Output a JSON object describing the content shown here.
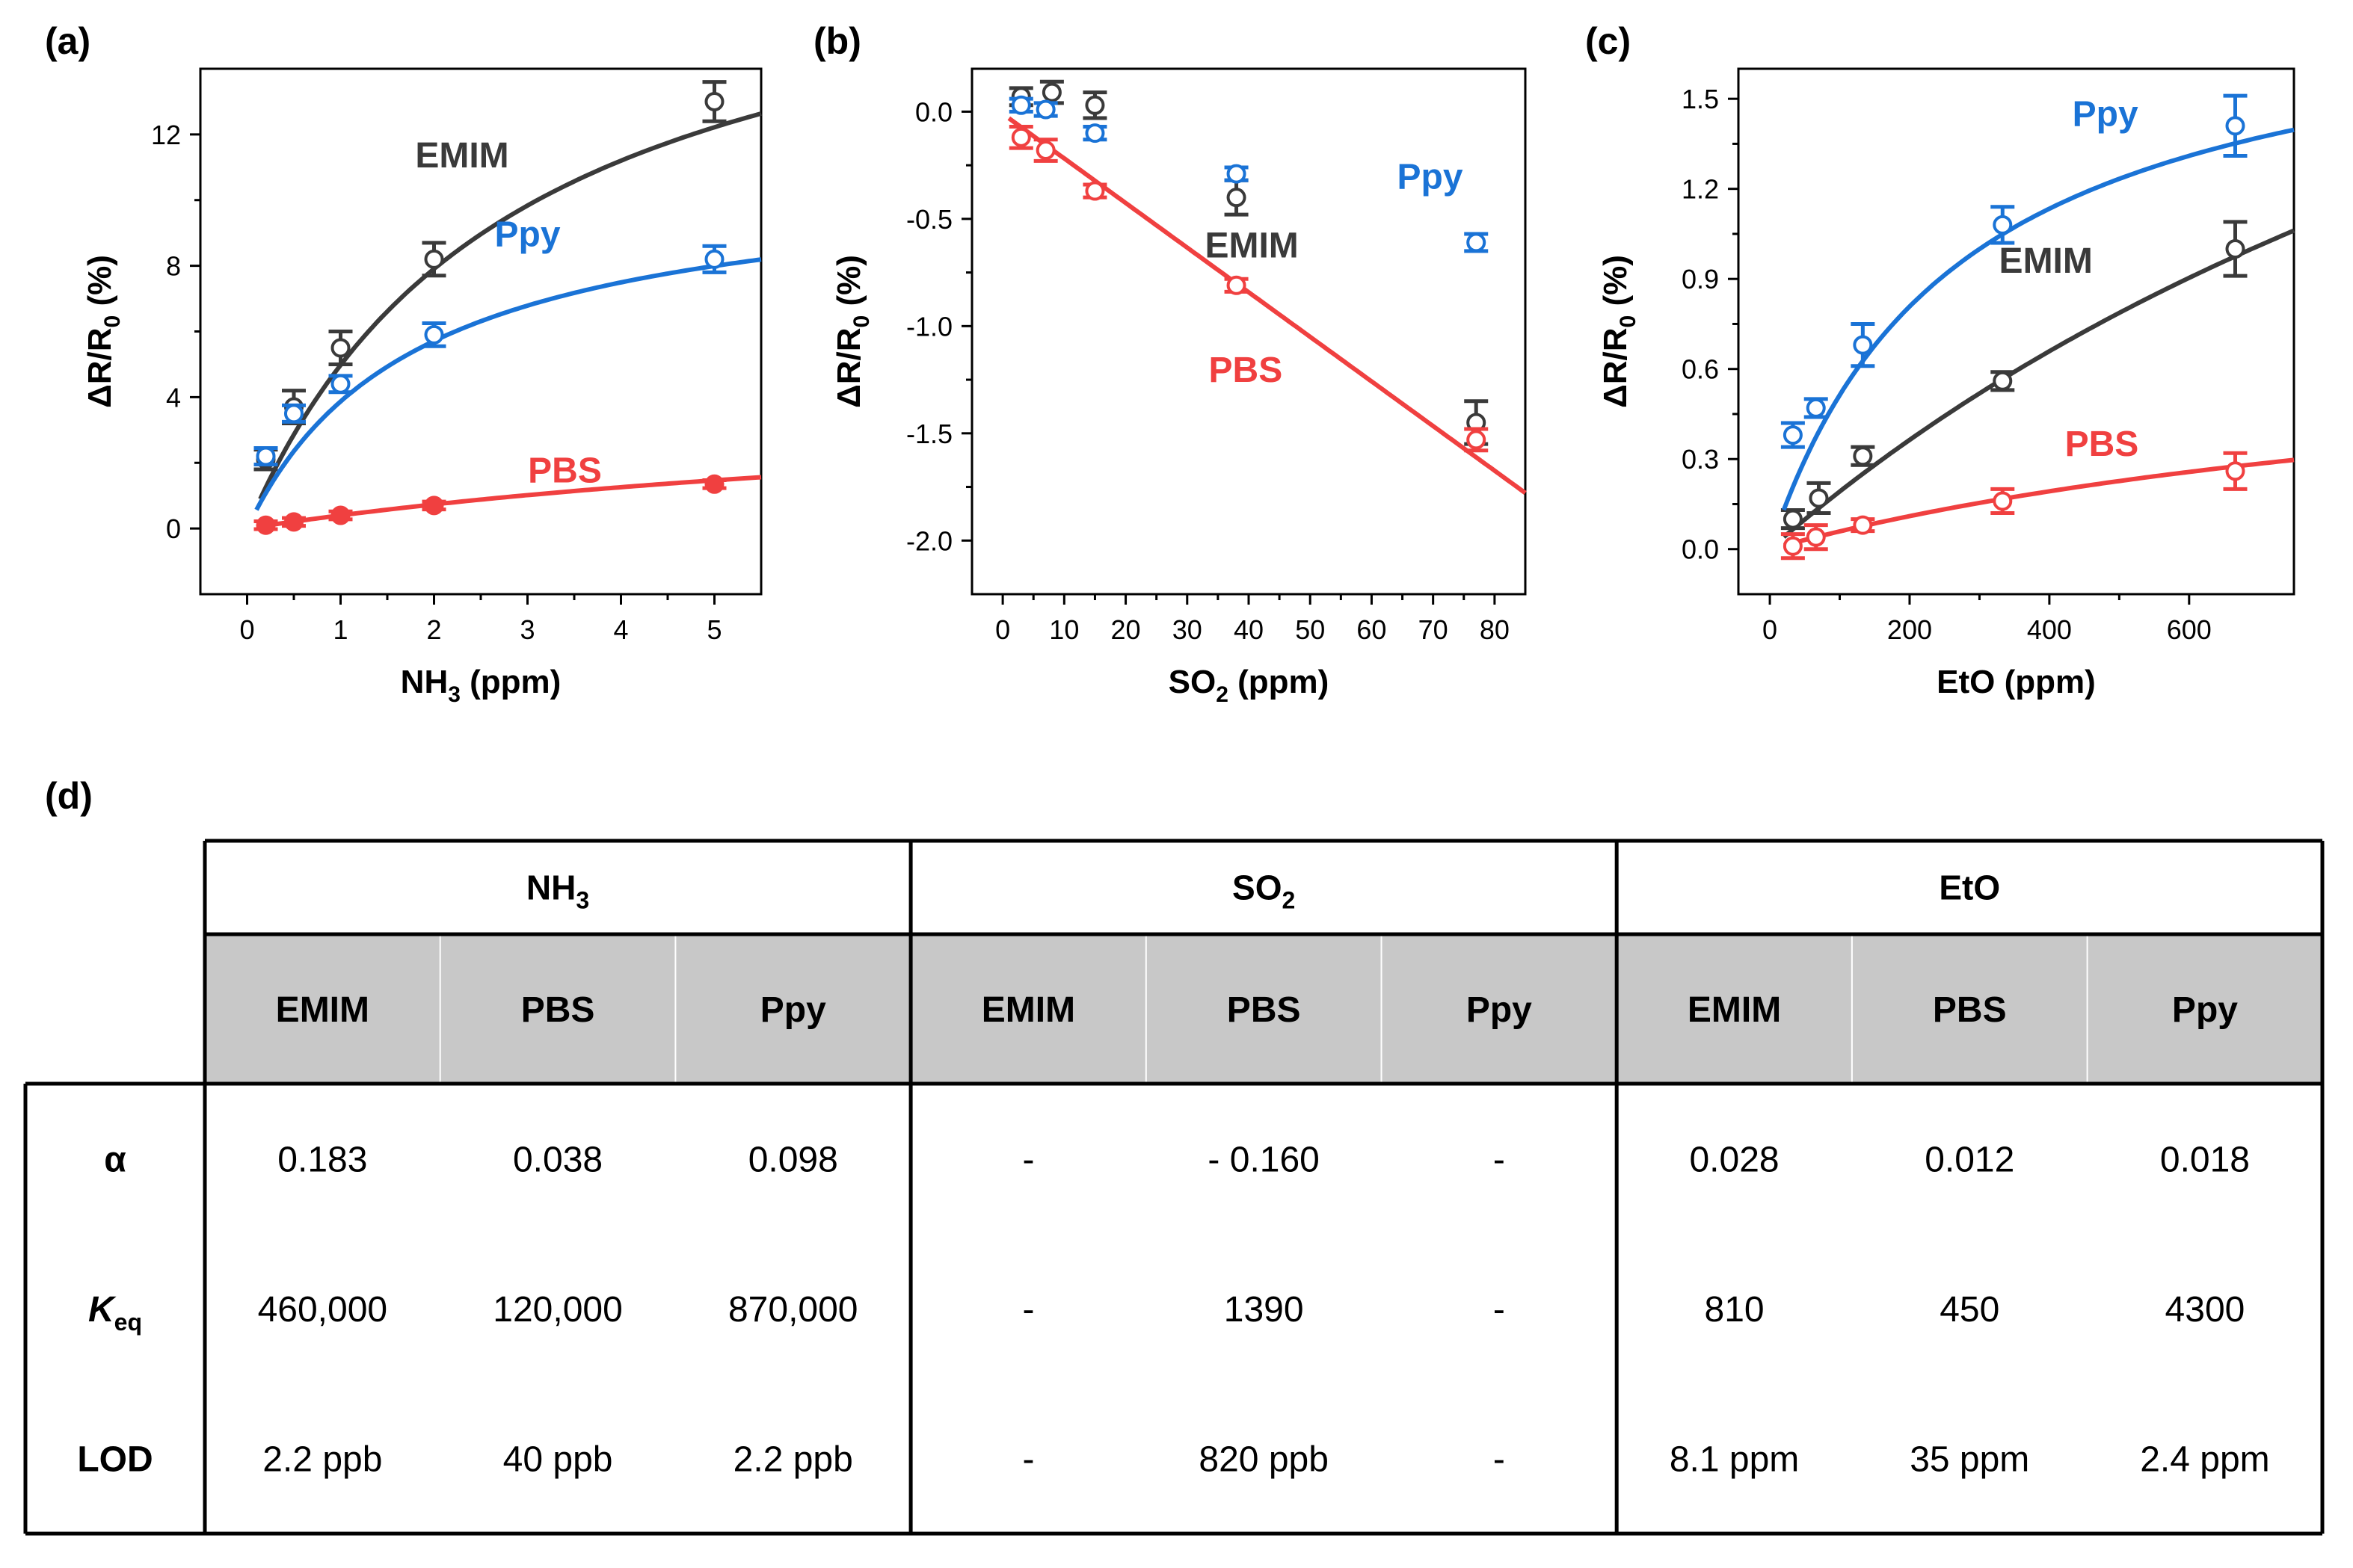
{
  "panel_labels": {
    "a": "(a)",
    "b": "(b)",
    "c": "(c)",
    "d": "(d)"
  },
  "colors": {
    "EMIM": "#3a3a3a",
    "Ppy": "#1a73d6",
    "PBS": "#f04040",
    "grid": "#000000",
    "header_bg": "#c8c8c8"
  },
  "chart_data": [
    {
      "id": "a",
      "type": "scatter",
      "xlabel_main": "NH",
      "xlabel_sub": "3",
      "xlabel_tail": " (ppm)",
      "ylabel": "ΔR/R0 (%)",
      "xlim": [
        -0.5,
        5.5
      ],
      "ylim": [
        -2,
        14
      ],
      "xticks": [
        0,
        1,
        2,
        3,
        4,
        5
      ],
      "yticks": [
        0,
        4,
        8,
        12
      ],
      "series": [
        {
          "name": "EMIM",
          "label": "EMIM",
          "label_at": [
            2.3,
            11
          ],
          "marker": "open",
          "points": [
            [
              0.2,
              2.1,
              0.3
            ],
            [
              0.5,
              3.7,
              0.5
            ],
            [
              1,
              5.5,
              0.5
            ],
            [
              2,
              8.2,
              0.5
            ],
            [
              5,
              13.0,
              0.6
            ]
          ],
          "fit": {
            "model": "langmuir",
            "a": 19.2,
            "k": 0.35,
            "x0": 0.14,
            "x1": 5.5
          }
        },
        {
          "name": "Ppy",
          "label": "Ppy",
          "label_at": [
            3.0,
            8.6
          ],
          "marker": "open",
          "points": [
            [
              0.2,
              2.2,
              0.25
            ],
            [
              0.5,
              3.5,
              0.25
            ],
            [
              1,
              4.4,
              0.25
            ],
            [
              2,
              5.9,
              0.35
            ],
            [
              5,
              8.2,
              0.4
            ]
          ],
          "fit": {
            "model": "langmuir",
            "a": 10.9,
            "k": 0.55,
            "x0": 0.1,
            "x1": 5.5
          }
        },
        {
          "name": "PBS",
          "label": "PBS",
          "label_at": [
            3.4,
            1.4
          ],
          "marker": "filled",
          "points": [
            [
              0.2,
              0.1,
              0.12
            ],
            [
              0.5,
              0.2,
              0.12
            ],
            [
              1,
              0.4,
              0.12
            ],
            [
              2,
              0.7,
              0.12
            ],
            [
              5,
              1.35,
              0.12
            ]
          ],
          "fit": {
            "model": "langmuir",
            "a": 4.4,
            "k": 0.1,
            "x0": 0.1,
            "x1": 5.5
          }
        }
      ]
    },
    {
      "id": "b",
      "type": "scatter",
      "xlabel_main": "SO",
      "xlabel_sub": "2",
      "xlabel_tail": " (ppm)",
      "ylabel": "ΔR/R0 (%)",
      "xlim": [
        -5,
        85
      ],
      "ylim": [
        -2.25,
        0.2
      ],
      "xticks": [
        0,
        10,
        20,
        30,
        40,
        50,
        60,
        70,
        80
      ],
      "yticks": [
        0.0,
        -0.5,
        -1.0,
        -1.5,
        -2.0
      ],
      "ytick_labels": [
        "0.0",
        "-0.5",
        "-1.0",
        "-1.5",
        "-2.0"
      ],
      "series": [
        {
          "name": "EMIM",
          "label": "EMIM",
          "label_at": [
            40.5,
            -0.68
          ],
          "marker": "open",
          "points": [
            [
              3,
              0.07,
              0.04
            ],
            [
              8,
              0.09,
              0.05
            ],
            [
              15,
              0.03,
              0.06
            ],
            [
              38,
              -0.4,
              0.08
            ],
            [
              77,
              -1.45,
              0.1
            ]
          ],
          "fit": null
        },
        {
          "name": "Ppy",
          "label": "Ppy",
          "label_at": [
            69.5,
            -0.36
          ],
          "marker": "open",
          "points": [
            [
              3,
              0.03,
              0.03
            ],
            [
              7,
              0.01,
              0.03
            ],
            [
              15,
              -0.1,
              0.03
            ],
            [
              38,
              -0.29,
              0.03
            ],
            [
              77,
              -0.61,
              0.04
            ]
          ],
          "fit": null
        },
        {
          "name": "PBS",
          "label": "PBS",
          "label_at": [
            39.5,
            -1.26
          ],
          "marker": "open",
          "points": [
            [
              3,
              -0.12,
              0.05
            ],
            [
              7,
              -0.18,
              0.05
            ],
            [
              15,
              -0.37,
              0.03
            ],
            [
              38,
              -0.81,
              0.03
            ],
            [
              77,
              -1.53,
              0.05
            ]
          ],
          "fit": {
            "model": "line",
            "slope": -0.0208,
            "intercept": -0.01,
            "x0": 1,
            "x1": 85
          }
        }
      ]
    },
    {
      "id": "c",
      "type": "scatter",
      "xlabel_main": "EtO",
      "xlabel_sub": "",
      "xlabel_tail": " (ppm)",
      "ylabel": "ΔR/R0 (%)",
      "xlim": [
        -45,
        750
      ],
      "ylim": [
        -0.15,
        1.6
      ],
      "xticks": [
        0,
        200,
        400,
        600
      ],
      "yticks": [
        0.0,
        0.3,
        0.6,
        0.9,
        1.2,
        1.5
      ],
      "ytick_labels": [
        "0.0",
        "0.3",
        "0.6",
        "0.9",
        "1.2",
        "1.5"
      ],
      "series": [
        {
          "name": "EMIM",
          "label": "EMIM",
          "label_at": [
            395,
            0.92
          ],
          "marker": "open",
          "points": [
            [
              33,
              0.1,
              0.03
            ],
            [
              70,
              0.17,
              0.05
            ],
            [
              133,
              0.31,
              0.03
            ],
            [
              333,
              0.56,
              0.03
            ],
            [
              666,
              1.0,
              0.09
            ]
          ],
          "fit": {
            "model": "langmuir",
            "a": 3.5,
            "k": 0.00058,
            "x0": 20,
            "x1": 750
          }
        },
        {
          "name": "Ppy",
          "label": "Ppy",
          "label_at": [
            480,
            1.41
          ],
          "marker": "open",
          "points": [
            [
              33,
              0.38,
              0.04
            ],
            [
              66,
              0.47,
              0.03
            ],
            [
              133,
              0.68,
              0.07
            ],
            [
              333,
              1.08,
              0.06
            ],
            [
              666,
              1.41,
              0.1
            ]
          ],
          "fit": {
            "model": "langmuir",
            "a": 1.9,
            "k": 0.0037,
            "x0": 20,
            "x1": 750
          }
        },
        {
          "name": "PBS",
          "label": "PBS",
          "label_at": [
            475,
            0.31
          ],
          "marker": "open",
          "points": [
            [
              33,
              0.01,
              0.04
            ],
            [
              66,
              0.04,
              0.04
            ],
            [
              133,
              0.08,
              0.02
            ],
            [
              333,
              0.16,
              0.04
            ],
            [
              666,
              0.26,
              0.06
            ]
          ],
          "fit": {
            "model": "langmuir",
            "a": 0.78,
            "k": 0.00082,
            "x0": 20,
            "x1": 750
          }
        }
      ]
    }
  ],
  "table": {
    "gas_headers": [
      {
        "main": "NH",
        "sub": "3"
      },
      {
        "main": "SO",
        "sub": "2"
      },
      {
        "main": "EtO",
        "sub": ""
      }
    ],
    "column_headers": [
      "EMIM",
      "PBS",
      "Ppy",
      "EMIM",
      "PBS",
      "Ppy",
      "EMIM",
      "PBS",
      "Ppy"
    ],
    "rows": [
      {
        "label_main": "α",
        "label_sub": "",
        "cells": [
          "0.183",
          "0.038",
          "0.098",
          "-",
          "- 0.160",
          "-",
          "0.028",
          "0.012",
          "0.018"
        ]
      },
      {
        "label_main": "K",
        "label_sub": "eq",
        "cells": [
          "460,000",
          "120,000",
          "870,000",
          "-",
          "1390",
          "-",
          "810",
          "450",
          "4300"
        ]
      },
      {
        "label_main": "LOD",
        "label_sub": "",
        "cells": [
          "2.2 ppb",
          "40 ppb",
          "2.2 ppb",
          "-",
          "820 ppb",
          "-",
          "8.1 ppm",
          "35 ppm",
          "2.4 ppm"
        ]
      }
    ]
  }
}
